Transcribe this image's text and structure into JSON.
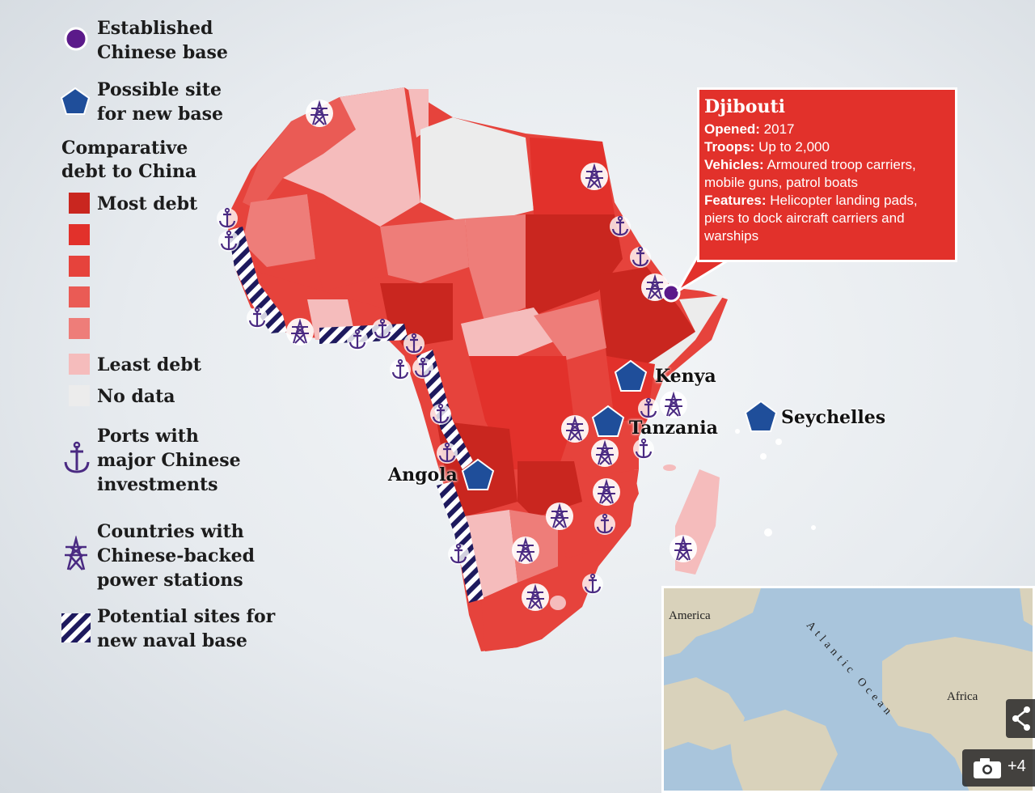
{
  "legend": {
    "established_base": "Established Chinese base",
    "established_base_l1": "Established",
    "established_base_l2": "Chinese base",
    "possible_site_l1": "Possible site",
    "possible_site_l2": "for new base",
    "debt_title_l1": "Comparative",
    "debt_title_l2": "debt to China",
    "most_debt": "Most debt",
    "least_debt": "Least debt",
    "no_data": "No data",
    "ports_l1": "Ports with",
    "ports_l2": "major Chinese",
    "ports_l3": "investments",
    "power_l1": "Countries with",
    "power_l2": "Chinese-backed",
    "power_l3": "power stations",
    "naval_l1": "Potential sites for",
    "naval_l2": "new naval base",
    "debt_colors": [
      "#c9261f",
      "#e2312b",
      "#e6433c",
      "#ea5b55",
      "#ee7d79",
      "#f5bcbc",
      "#ececec"
    ]
  },
  "callout": {
    "title": "Djibouti",
    "opened_key": "Opened:",
    "opened_val": " 2017",
    "troops_key": "Troops:",
    "troops_val": " Up to 2,000",
    "vehicles_key": "Vehicles:",
    "vehicles_val": " Armoured troop carriers, mobile guns, patrol boats",
    "features_key": "Features:",
    "features_val": " Helicopter landing pads, piers to dock aircraft carriers and warships"
  },
  "labels": {
    "kenya": "Kenya",
    "tanzania": "Tanzania",
    "seychelles": "Seychelles",
    "angola": "Angola"
  },
  "inset": {
    "america": "America",
    "ocean": "Atlantic Ocean",
    "africa": "Africa"
  },
  "ui": {
    "photo_count": "+4"
  },
  "colors": {
    "base_purple": "#5b1a8a",
    "pentagon_blue": "#1f4e9a",
    "icon_purple": "#4a2a82",
    "hatch_navy": "#1e1a5e"
  }
}
